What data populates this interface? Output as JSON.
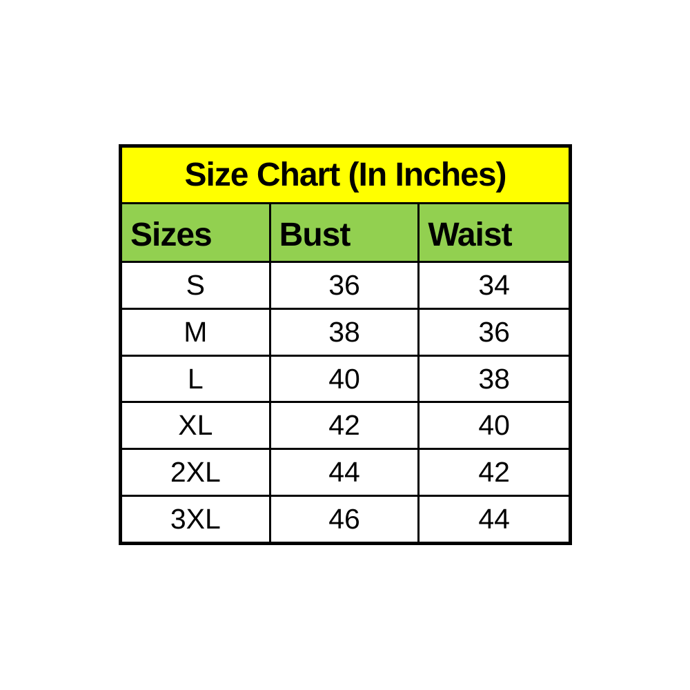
{
  "chart_data": {
    "type": "table",
    "title": "Size Chart (In Inches)",
    "columns": [
      "Sizes",
      "Bust",
      "Waist"
    ],
    "rows": [
      [
        "S",
        "36",
        "34"
      ],
      [
        "M",
        "38",
        "36"
      ],
      [
        "L",
        "40",
        "38"
      ],
      [
        "XL",
        "42",
        "40"
      ],
      [
        "2XL",
        "44",
        "42"
      ],
      [
        "3XL",
        "46",
        "44"
      ]
    ],
    "layout": {
      "title_bg": "#FFFF00",
      "header_bg": "#92D050",
      "row_bg": "#FFFFFF",
      "border_color": "#000000",
      "text_color": "#000000",
      "header_align": "left",
      "data_align": "center"
    }
  }
}
